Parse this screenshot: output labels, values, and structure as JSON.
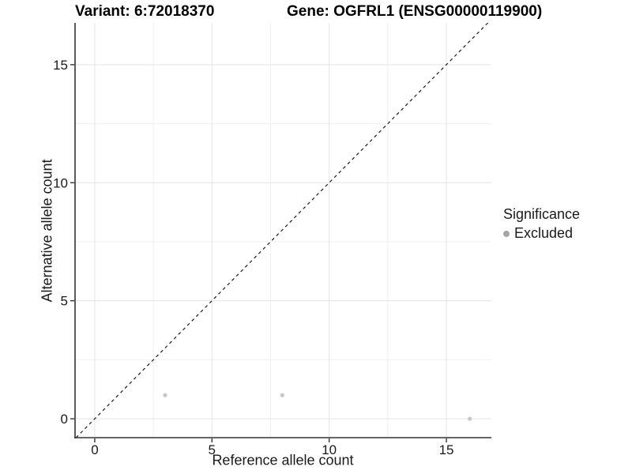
{
  "titles": {
    "variant": "Variant: 6:72018370",
    "gene": "Gene: OGFRL1 (ENSG00000119900)"
  },
  "chart_data": {
    "type": "scatter",
    "title_left": "Variant: 6:72018370",
    "title_right": "Gene: OGFRL1 (ENSG00000119900)",
    "xlabel": "Reference allele count",
    "ylabel": "Alternative allele count",
    "xlim": [
      -0.84,
      16.92
    ],
    "ylim": [
      -0.8,
      16.77
    ],
    "x_ticks": [
      0,
      5,
      10,
      15
    ],
    "y_ticks": [
      0,
      5,
      10,
      15
    ],
    "x_minor_ticks": [
      2.5,
      7.5,
      12.5
    ],
    "y_minor_ticks": [
      2.5,
      7.5,
      12.5
    ],
    "grid": true,
    "reference_line": {
      "kind": "identity",
      "style": "dashed",
      "color": "#1a1a1a"
    },
    "series": [
      {
        "name": "Excluded",
        "points": [
          {
            "x": 3,
            "y": 1
          },
          {
            "x": 8,
            "y": 1
          },
          {
            "x": 16,
            "y": 0
          }
        ],
        "color": "#c7c7c7",
        "point_radius": 2.6
      }
    ],
    "legend": {
      "title": "Significance",
      "position": "right",
      "items": [
        {
          "label": "Excluded",
          "color": "#a6a6a6"
        }
      ]
    },
    "style": {
      "axis_line_color": "#333333",
      "tick_color": "#333333",
      "tick_label_color": "#1a1a1a",
      "major_grid_color": "#e4e4e4",
      "minor_grid_color": "#f0f0f0",
      "background": "#ffffff"
    }
  }
}
